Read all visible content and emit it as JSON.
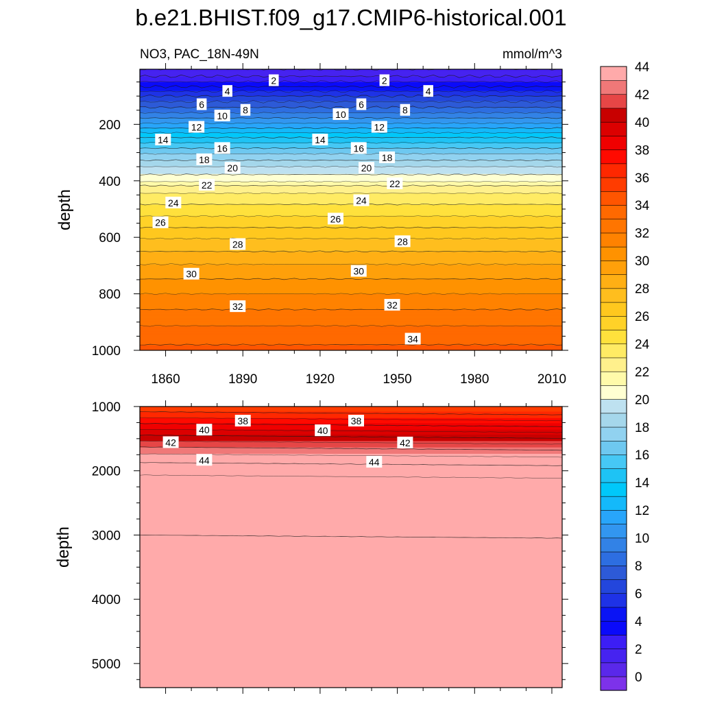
{
  "chart_data": [
    {
      "type": "contour",
      "panel": "upper",
      "title": "b.e21.BHIST.f09_g17.CMIP6-historical.001",
      "subtitle_left": "NO3, PAC_18N-49N",
      "subtitle_right": "mmol/m^3",
      "xlabel": "",
      "ylabel": "depth",
      "xlim": [
        1850,
        2014
      ],
      "ylim": [
        1000,
        5
      ],
      "x_ticks": [
        1860,
        1890,
        1920,
        1950,
        1980,
        2010
      ],
      "y_ticks": [
        200,
        400,
        600,
        800,
        1000
      ],
      "levels": [
        0,
        2,
        4,
        6,
        8,
        10,
        12,
        14,
        16,
        18,
        20,
        22,
        24,
        26,
        28,
        30,
        32,
        34,
        36,
        38,
        40,
        42,
        44
      ],
      "profile": {
        "depth": [
          5,
          10,
          20,
          30,
          40,
          60,
          80,
          100,
          150,
          200,
          250,
          300,
          350,
          400,
          420,
          450,
          500,
          550,
          600,
          700,
          800,
          900,
          1000
        ],
        "no3": [
          1.0,
          1.2,
          1.6,
          2.0,
          2.5,
          3.6,
          4.8,
          6.0,
          8.5,
          11.2,
          14.2,
          16.8,
          19.0,
          20.8,
          22.2,
          23.2,
          24.4,
          25.6,
          26.9,
          29.1,
          31.0,
          32.8,
          34.3
        ]
      },
      "contour_labels": [
        {
          "value": "2",
          "x": 1902,
          "y": 45
        },
        {
          "value": "2",
          "x": 1945,
          "y": 45
        },
        {
          "value": "4",
          "x": 1884,
          "y": 83
        },
        {
          "value": "4",
          "x": 1962,
          "y": 83
        },
        {
          "value": "6",
          "x": 1874,
          "y": 130
        },
        {
          "value": "6",
          "x": 1936,
          "y": 130
        },
        {
          "value": "8",
          "x": 1891,
          "y": 150
        },
        {
          "value": "8",
          "x": 1953,
          "y": 150
        },
        {
          "value": "10",
          "x": 1882,
          "y": 170
        },
        {
          "value": "10",
          "x": 1928,
          "y": 165
        },
        {
          "value": "12",
          "x": 1872,
          "y": 210
        },
        {
          "value": "12",
          "x": 1943,
          "y": 210
        },
        {
          "value": "14",
          "x": 1859,
          "y": 255
        },
        {
          "value": "14",
          "x": 1920,
          "y": 255
        },
        {
          "value": "16",
          "x": 1882,
          "y": 285
        },
        {
          "value": "16",
          "x": 1935,
          "y": 285
        },
        {
          "value": "18",
          "x": 1875,
          "y": 325
        },
        {
          "value": "18",
          "x": 1946,
          "y": 318
        },
        {
          "value": "20",
          "x": 1886,
          "y": 355
        },
        {
          "value": "20",
          "x": 1938,
          "y": 355
        },
        {
          "value": "22",
          "x": 1876,
          "y": 415
        },
        {
          "value": "22",
          "x": 1949,
          "y": 410
        },
        {
          "value": "24",
          "x": 1863,
          "y": 478
        },
        {
          "value": "24",
          "x": 1936,
          "y": 470
        },
        {
          "value": "26",
          "x": 1858,
          "y": 548
        },
        {
          "value": "26",
          "x": 1926,
          "y": 535
        },
        {
          "value": "28",
          "x": 1888,
          "y": 625
        },
        {
          "value": "28",
          "x": 1952,
          "y": 615
        },
        {
          "value": "30",
          "x": 1870,
          "y": 730
        },
        {
          "value": "30",
          "x": 1935,
          "y": 720
        },
        {
          "value": "32",
          "x": 1888,
          "y": 845
        },
        {
          "value": "32",
          "x": 1948,
          "y": 840
        },
        {
          "value": "34",
          "x": 1956,
          "y": 960
        }
      ]
    },
    {
      "type": "contour",
      "panel": "lower",
      "xlabel": "",
      "ylabel": "depth",
      "xlim": [
        1850,
        2014
      ],
      "ylim": [
        5375,
        1000
      ],
      "y_ticks": [
        1000,
        2000,
        3000,
        4000,
        5000
      ],
      "profile": {
        "depth": [
          1000,
          1100,
          1200,
          1300,
          1400,
          1500,
          1600,
          1700,
          1800,
          1900,
          2000,
          2100,
          2500,
          3000,
          3500,
          3600,
          4000,
          5000,
          5375
        ],
        "no3": [
          35.2,
          36.2,
          37.3,
          38.4,
          39.5,
          40.6,
          41.7,
          42.7,
          43.5,
          44.2,
          44.8,
          45.1,
          45.7,
          46.0,
          45.98,
          45.9,
          45.6,
          45.2,
          45.0
        ]
      },
      "contour_labels": [
        {
          "value": "38",
          "x": 1890,
          "y": 1225
        },
        {
          "value": "38",
          "x": 1934,
          "y": 1225
        },
        {
          "value": "40",
          "x": 1875,
          "y": 1365
        },
        {
          "value": "40",
          "x": 1921,
          "y": 1375
        },
        {
          "value": "42",
          "x": 1862,
          "y": 1560
        },
        {
          "value": "42",
          "x": 1953,
          "y": 1565
        },
        {
          "value": "44",
          "x": 1875,
          "y": 1835
        },
        {
          "value": "44",
          "x": 1941,
          "y": 1865
        }
      ]
    }
  ],
  "colorbar": {
    "colors": [
      "#7d32ea",
      "#5a28ea",
      "#4623f0",
      "#3c1ef5",
      "#0a0afa",
      "#0a14f5",
      "#1e32e6",
      "#2346dc",
      "#2d5ad7",
      "#2d6ee1",
      "#3282e6",
      "#3296f0",
      "#28a5fa",
      "#14b9fa",
      "#00c8fa",
      "#1ec3f5",
      "#46c8f5",
      "#6ec8f0",
      "#91d2f0",
      "#a5d7eb",
      "#bee1f0",
      "#ffffd2",
      "#fffaaa",
      "#fff08c",
      "#ffeb64",
      "#ffe13c",
      "#ffd228",
      "#ffc81e",
      "#ffbe1e",
      "#ffaf14",
      "#ffa00a",
      "#ff9200",
      "#ff8200",
      "#ff7500",
      "#ff6900",
      "#ff5500",
      "#ff3c00",
      "#ff2800",
      "#ff0a00",
      "#f00000",
      "#dc0000",
      "#c80000",
      "#e64646",
      "#f07878",
      "#ffaaaa"
    ],
    "tick_values": [
      0,
      2,
      4,
      6,
      8,
      10,
      12,
      14,
      16,
      18,
      20,
      22,
      24,
      26,
      28,
      30,
      32,
      34,
      36,
      38,
      40,
      42,
      44
    ]
  }
}
